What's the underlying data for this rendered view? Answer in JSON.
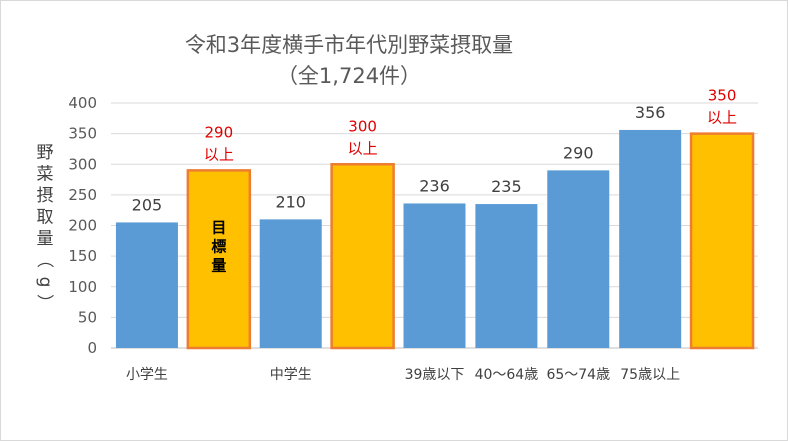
{
  "chart_data": {
    "type": "bar",
    "title": "令和3年度横手市年代別野菜摂取量",
    "subtitle": "（全1,724件）",
    "ylabel": "野菜摂取量（g）",
    "ylim": [
      0,
      400
    ],
    "yticks": [
      0,
      50,
      100,
      150,
      200,
      250,
      300,
      350,
      400
    ],
    "grid": true,
    "legend": "none",
    "bars": [
      {
        "value": 205,
        "kind": "actual",
        "label": "205",
        "color": "#5b9bd5"
      },
      {
        "value": 290,
        "kind": "target",
        "label": "290",
        "label2": "以上",
        "inner": "目標量",
        "color": "#ffc000"
      },
      {
        "value": 210,
        "kind": "actual",
        "label": "210",
        "color": "#5b9bd5"
      },
      {
        "value": 300,
        "kind": "target",
        "label": "300",
        "label2": "以上",
        "color": "#ffc000"
      },
      {
        "value": 236,
        "kind": "actual",
        "label": "236",
        "color": "#5b9bd5"
      },
      {
        "value": 235,
        "kind": "actual",
        "label": "235",
        "color": "#5b9bd5"
      },
      {
        "value": 290,
        "kind": "actual",
        "label": "290",
        "color": "#5b9bd5"
      },
      {
        "value": 356,
        "kind": "actual",
        "label": "356",
        "color": "#5b9bd5"
      },
      {
        "value": 350,
        "kind": "target",
        "label": "350",
        "label2": "以上",
        "color": "#ffc000"
      }
    ],
    "category_labels": [
      "小学生",
      "中学生",
      "39歳以下",
      "40～64歳",
      "65～74歳",
      "75歳以上"
    ],
    "colors": {
      "actual": "#5b9bd5",
      "target": "#ffc000",
      "target_border": "#ed7d31",
      "target_label": "#e00000"
    }
  }
}
